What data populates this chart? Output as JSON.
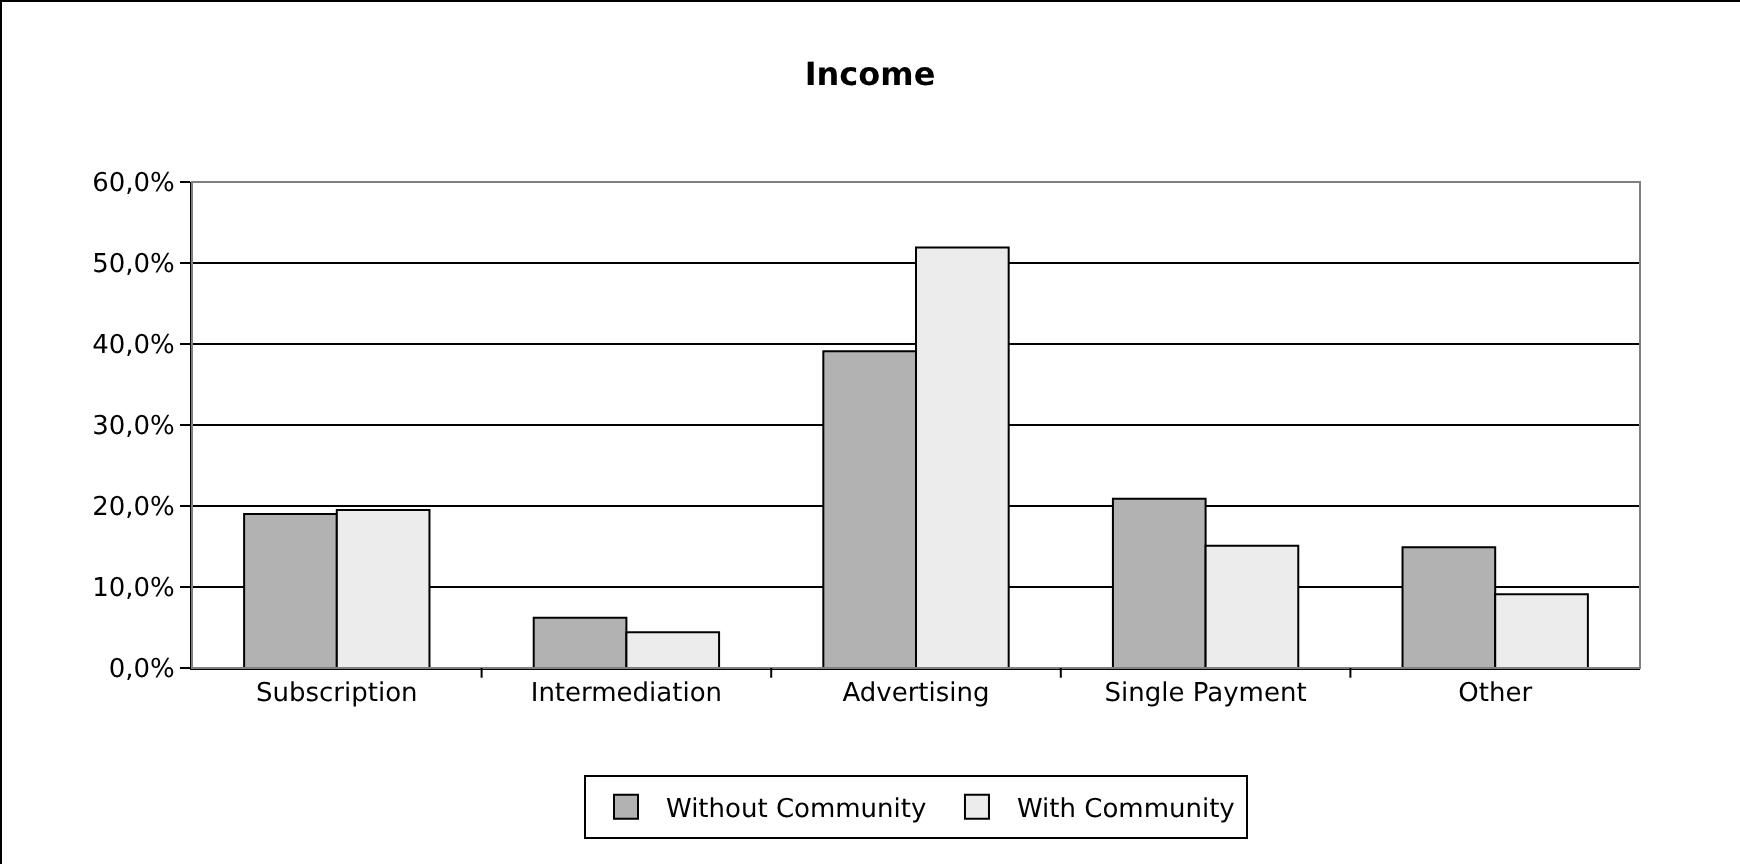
{
  "chart_data": {
    "type": "bar",
    "title": "Income",
    "categories": [
      "Subscription",
      "Intermediation",
      "Advertising",
      "Single Payment",
      "Other"
    ],
    "series": [
      {
        "name": "Without Community",
        "color": "#b2b2b2",
        "values": [
          19,
          6.2,
          39.1,
          20.9,
          14.9
        ]
      },
      {
        "name": "With Community",
        "color": "#ececec",
        "values": [
          19.5,
          4.4,
          51.9,
          15.1,
          9.1
        ]
      }
    ],
    "ylim": [
      0,
      60
    ],
    "yticks": [
      {
        "value": 0,
        "label": "0,0%"
      },
      {
        "value": 10,
        "label": "10,0%"
      },
      {
        "value": 20,
        "label": "20,0%"
      },
      {
        "value": 30,
        "label": "30,0%"
      },
      {
        "value": 40,
        "label": "40,0%"
      },
      {
        "value": 50,
        "label": "50,0%"
      },
      {
        "value": 60,
        "label": "60,0%"
      }
    ],
    "grid": "y",
    "legend": "bottom"
  }
}
